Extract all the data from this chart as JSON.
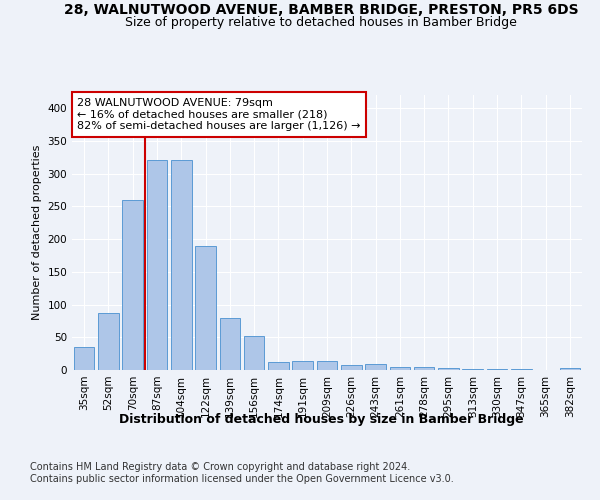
{
  "title": "28, WALNUTWOOD AVENUE, BAMBER BRIDGE, PRESTON, PR5 6DS",
  "subtitle": "Size of property relative to detached houses in Bamber Bridge",
  "xlabel": "Distribution of detached houses by size in Bamber Bridge",
  "ylabel": "Number of detached properties",
  "categories": [
    "35sqm",
    "52sqm",
    "70sqm",
    "87sqm",
    "104sqm",
    "122sqm",
    "139sqm",
    "156sqm",
    "174sqm",
    "191sqm",
    "209sqm",
    "226sqm",
    "243sqm",
    "261sqm",
    "278sqm",
    "295sqm",
    "313sqm",
    "330sqm",
    "347sqm",
    "365sqm",
    "382sqm"
  ],
  "values": [
    35,
    87,
    260,
    320,
    320,
    190,
    80,
    52,
    12,
    13,
    13,
    7,
    9,
    5,
    4,
    3,
    1,
    1,
    1,
    0,
    3
  ],
  "bar_color": "#aec6e8",
  "bar_edge_color": "#5b9bd5",
  "vline_x_index": 2,
  "vline_color": "#cc0000",
  "annotation_text": "28 WALNUTWOOD AVENUE: 79sqm\n← 16% of detached houses are smaller (218)\n82% of semi-detached houses are larger (1,126) →",
  "annotation_box_color": "#ffffff",
  "annotation_box_edge": "#cc0000",
  "footer_text": "Contains HM Land Registry data © Crown copyright and database right 2024.\nContains public sector information licensed under the Open Government Licence v3.0.",
  "ylim": [
    0,
    420
  ],
  "background_color": "#eef2f9",
  "plot_background": "#eef2f9",
  "title_fontsize": 10,
  "subtitle_fontsize": 9,
  "xlabel_fontsize": 9,
  "ylabel_fontsize": 8,
  "tick_fontsize": 7.5,
  "footer_fontsize": 7,
  "annotation_fontsize": 8
}
